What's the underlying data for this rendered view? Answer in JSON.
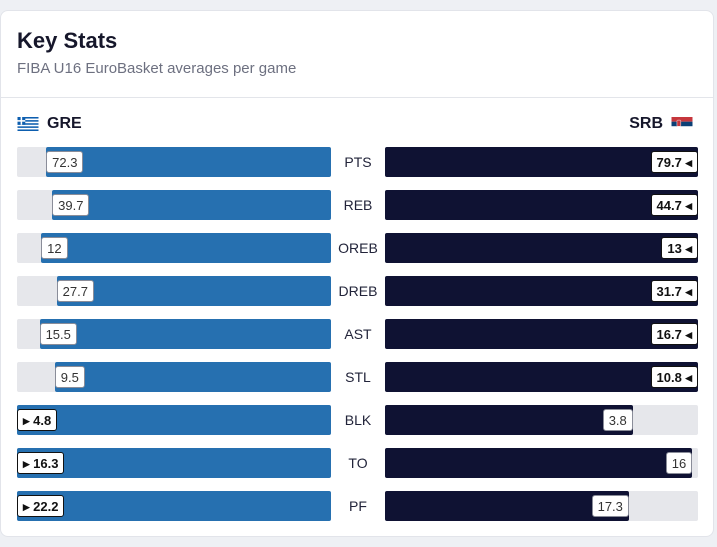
{
  "header": {
    "title": "Key Stats",
    "subtitle": "FIBA U16 EuroBasket averages per game"
  },
  "teams": {
    "left": {
      "code": "GRE",
      "color": "#2670b0",
      "flag": "greece-flag"
    },
    "right": {
      "code": "SRB",
      "color": "#0f1233",
      "flag": "serbia-flag"
    }
  },
  "chart_data": {
    "type": "bar",
    "title": "Key Stats",
    "subtitle": "FIBA U16 EuroBasket averages per game",
    "categories": [
      "PTS",
      "REB",
      "OREB",
      "DREB",
      "AST",
      "STL",
      "BLK",
      "TO",
      "PF"
    ],
    "series": [
      {
        "name": "GRE",
        "values": [
          72.3,
          39.7,
          12,
          27.7,
          15.5,
          9.5,
          4.8,
          16.3,
          22.2
        ]
      },
      {
        "name": "SRB",
        "values": [
          79.7,
          44.7,
          13,
          31.7,
          16.7,
          10.8,
          3.8,
          16,
          17.3
        ]
      }
    ],
    "labels": {
      "GRE": [
        "72.3",
        "39.7",
        "12",
        "27.7",
        "15.5",
        "9.5",
        "4.8",
        "16.3",
        "22.2"
      ],
      "SRB": [
        "79.7",
        "44.7",
        "13",
        "31.7",
        "16.7",
        "10.8",
        "3.8",
        "16",
        "17.3"
      ]
    },
    "leader": [
      "SRB",
      "SRB",
      "SRB",
      "SRB",
      "SRB",
      "SRB",
      "GRE",
      "GRE",
      "GRE"
    ]
  }
}
